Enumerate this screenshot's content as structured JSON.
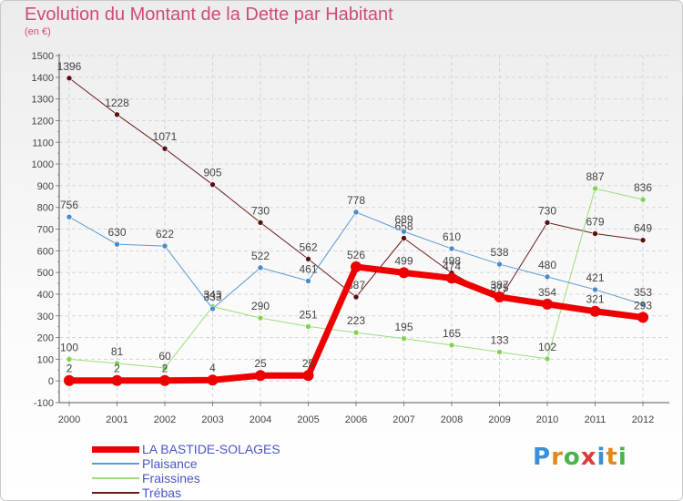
{
  "chart_data": {
    "type": "line",
    "title": "Evolution du Montant de la Dette par Habitant",
    "subtitle": "(en €)",
    "x": [
      "2000",
      "2001",
      "2002",
      "2003",
      "2004",
      "2005",
      "2006",
      "2007",
      "2008",
      "2009",
      "2010",
      "2011",
      "2012"
    ],
    "ylim": [
      -100,
      1500
    ],
    "yticks": [
      -100,
      0,
      100,
      200,
      300,
      400,
      500,
      600,
      700,
      800,
      900,
      1000,
      1100,
      1200,
      1300,
      1400,
      1500
    ],
    "grid": true,
    "legend_position": "bottom-left",
    "series": [
      {
        "name": "Trébas",
        "color": "#6b1a1a",
        "marker_color": "#5a1010",
        "width": 1,
        "values": [
          1396,
          1228,
          1071,
          905,
          730,
          562,
          387,
          658,
          498,
          375,
          730,
          679,
          649
        ]
      },
      {
        "name": "Fraissines",
        "color": "#99e07a",
        "marker_color": "#7fd44e",
        "width": 1,
        "values": [
          100,
          81,
          60,
          343,
          290,
          251,
          223,
          195,
          165,
          133,
          102,
          887,
          836
        ]
      },
      {
        "name": "Plaisance",
        "color": "#5b9bd5",
        "marker_color": "#4a8bcb",
        "width": 1,
        "values": [
          756,
          630,
          622,
          333,
          522,
          461,
          778,
          689,
          610,
          538,
          480,
          421,
          353
        ]
      },
      {
        "name": "LA BASTIDE-SOLAGES",
        "color": "#ee0000",
        "marker_color": "#ee0000",
        "width": 7,
        "values": [
          2,
          2,
          2,
          4,
          25,
          25,
          526,
          499,
          474,
          387,
          354,
          321,
          293
        ]
      }
    ]
  },
  "legend": [
    {
      "label": "LA BASTIDE-SOLAGES",
      "color": "#ee0000",
      "thickness": 7
    },
    {
      "label": "Plaisance",
      "color": "#5b9bd5",
      "thickness": 2
    },
    {
      "label": "Fraissines",
      "color": "#99e07a",
      "thickness": 2
    },
    {
      "label": "Trébas",
      "color": "#6b1a1a",
      "thickness": 2
    }
  ],
  "brand": {
    "text": "Proxiti",
    "letter_colors": [
      "#3a8fd8",
      "#e08a1e",
      "#49b34a",
      "#e03a3a",
      "#3a8fd8",
      "#e08a1e",
      "#49b34a"
    ]
  }
}
